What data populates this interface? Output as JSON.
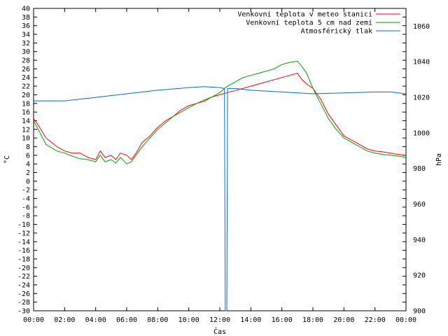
{
  "chart_data": {
    "type": "line",
    "xlabel": "Čas",
    "ylabel": "°C",
    "y2label": "hPa",
    "xlim": [
      0,
      24
    ],
    "ylim": [
      -30,
      40
    ],
    "y2lim": [
      900,
      1070
    ],
    "x_ticks": [
      "00:00",
      "02:00",
      "04:00",
      "06:00",
      "08:00",
      "10:00",
      "12:00",
      "14:00",
      "16:00",
      "18:00",
      "20:00",
      "22:00",
      "00:00"
    ],
    "y_ticks": [
      40,
      38,
      36,
      34,
      32,
      30,
      28,
      26,
      24,
      22,
      20,
      18,
      16,
      14,
      12,
      10,
      8,
      6,
      4,
      2,
      0,
      -2,
      -4,
      -6,
      -8,
      -10,
      -12,
      -14,
      -16,
      -18,
      -20,
      -22,
      -24,
      -26,
      -28,
      -30
    ],
    "y2_ticks": [
      1060,
      1040,
      1020,
      1000,
      980,
      960,
      940,
      920,
      900
    ],
    "grid": false,
    "legend_position": "top-right",
    "series": [
      {
        "name": "Venkovní teplota v meteo stanici",
        "color": "#ff0000",
        "axis": "y",
        "x": [
          0,
          0.3,
          0.8,
          1.5,
          2,
          2.5,
          3,
          3.5,
          4,
          4.3,
          4.6,
          5,
          5.3,
          5.6,
          6,
          6.3,
          6.6,
          7,
          7.5,
          8,
          8.5,
          9,
          9.5,
          10,
          10.5,
          11,
          11.5,
          12,
          12.5,
          13,
          13.5,
          14,
          14.5,
          15,
          15.5,
          16,
          16.5,
          17,
          17.3,
          17.6,
          18,
          18.5,
          19,
          19.5,
          20,
          20.5,
          21,
          21.5,
          22,
          22.5,
          23,
          23.5,
          24
        ],
        "y": [
          14.5,
          13,
          10,
          8,
          7,
          6.5,
          6.5,
          5.5,
          5,
          7,
          5.5,
          6,
          5,
          6.5,
          6,
          5,
          6.5,
          9,
          10.5,
          12.5,
          14,
          15,
          16.5,
          17.5,
          18,
          18.5,
          19.5,
          20,
          20.5,
          21,
          21.5,
          22,
          22.5,
          23,
          23.5,
          24,
          24.5,
          25,
          23.5,
          22.5,
          21.5,
          19,
          15.5,
          13,
          10.5,
          9.5,
          8.5,
          7.5,
          7,
          6.8,
          6.5,
          6.2,
          6
        ]
      },
      {
        "name": "Venkovní teplota 5 cm nad zemí",
        "color": "#00a000",
        "axis": "y",
        "x": [
          0,
          0.3,
          0.8,
          1.5,
          2,
          2.5,
          3,
          3.5,
          4,
          4.3,
          4.6,
          5,
          5.3,
          5.6,
          6,
          6.3,
          6.6,
          7,
          7.5,
          8,
          8.5,
          9,
          9.5,
          10,
          10.5,
          11,
          11.5,
          12,
          12.3,
          12.5,
          13,
          13.5,
          14,
          14.5,
          15,
          15.5,
          16,
          16.5,
          17,
          17.3,
          17.6,
          18,
          18.5,
          19,
          19.5,
          20,
          20.5,
          21,
          21.5,
          22,
          22.5,
          23,
          23.5,
          24
        ],
        "y": [
          14,
          12,
          8.5,
          7,
          6.5,
          5.8,
          5.2,
          5,
          4.5,
          6,
          4.5,
          5,
          4.2,
          5.5,
          4,
          4.5,
          6,
          8,
          10,
          12,
          13.5,
          15,
          16,
          17,
          18,
          18.8,
          19.5,
          20.5,
          21.5,
          22,
          23,
          24,
          24.5,
          25,
          25.5,
          26,
          27,
          27.5,
          27.8,
          26.5,
          25,
          21.5,
          18,
          14.5,
          12,
          10,
          9,
          8,
          7,
          6.5,
          6.2,
          6,
          5.8,
          5.5
        ]
      },
      {
        "name": "Atmosférický tlak",
        "color": "#0070c0",
        "axis": "y2",
        "x": [
          0,
          2,
          4,
          6,
          8,
          10,
          11,
          12,
          12.3,
          12.35,
          12.45,
          12.5,
          12.55,
          13,
          14,
          16,
          18,
          20,
          22,
          23,
          24
        ],
        "y": [
          1018,
          1018,
          1020,
          1022,
          1024,
          1025.5,
          1026,
          1025.5,
          1025,
          900,
          900,
          1025,
          1025,
          1025,
          1024,
          1023,
          1022,
          1022.5,
          1023,
          1023,
          1022
        ]
      }
    ]
  }
}
